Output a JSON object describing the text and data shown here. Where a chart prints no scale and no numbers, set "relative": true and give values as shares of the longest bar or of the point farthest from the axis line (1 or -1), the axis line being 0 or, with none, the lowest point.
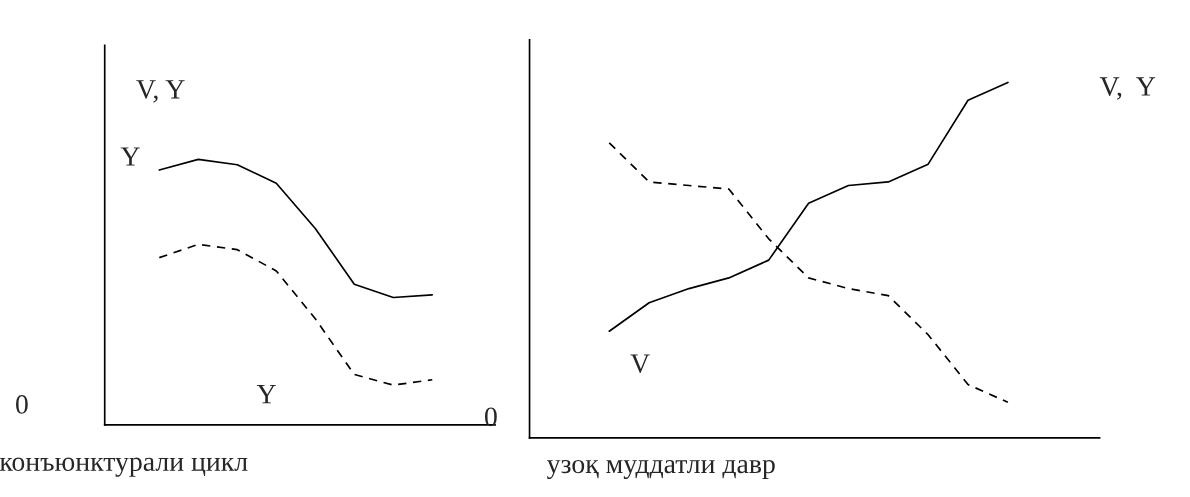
{
  "chart_data": [
    {
      "type": "line",
      "relative": true,
      "ylabel": "V, Y",
      "xlabel": "конъюнктурали цикл",
      "annotations": [
        "0"
      ],
      "categories": [
        null,
        null,
        null,
        null,
        null,
        null,
        null,
        null
      ],
      "series": [
        {
          "name": "Y",
          "color": "#000000",
          "line_style": "solid",
          "values": [
            0.96,
            1.0,
            0.98,
            0.91,
            0.74,
            0.53,
            0.48,
            0.49
          ]
        },
        {
          "name": "Y",
          "color": "#000000",
          "line_style": "dashed",
          "values": [
            0.63,
            0.68,
            0.66,
            0.58,
            0.4,
            0.19,
            0.15,
            0.17
          ]
        }
      ]
    },
    {
      "type": "line",
      "relative": true,
      "ylabel": "V,  Y",
      "xlabel": "узоқ муддатли давр",
      "annotations": [
        "0"
      ],
      "categories": [
        null,
        null,
        null,
        null,
        null,
        null,
        null,
        null,
        null,
        null,
        null
      ],
      "series": [
        {
          "name": "V",
          "color": "#000000",
          "line_style": "solid",
          "values": [
            0.3,
            0.38,
            0.42,
            0.45,
            0.5,
            0.66,
            0.71,
            0.72,
            0.77,
            0.95,
            1.0
          ]
        },
        {
          "color": "#000000",
          "line_style": "dashed",
          "values": [
            0.83,
            0.72,
            0.71,
            0.7,
            0.56,
            0.45,
            0.42,
            0.4,
            0.29,
            0.15,
            0.1
          ]
        }
      ]
    }
  ]
}
